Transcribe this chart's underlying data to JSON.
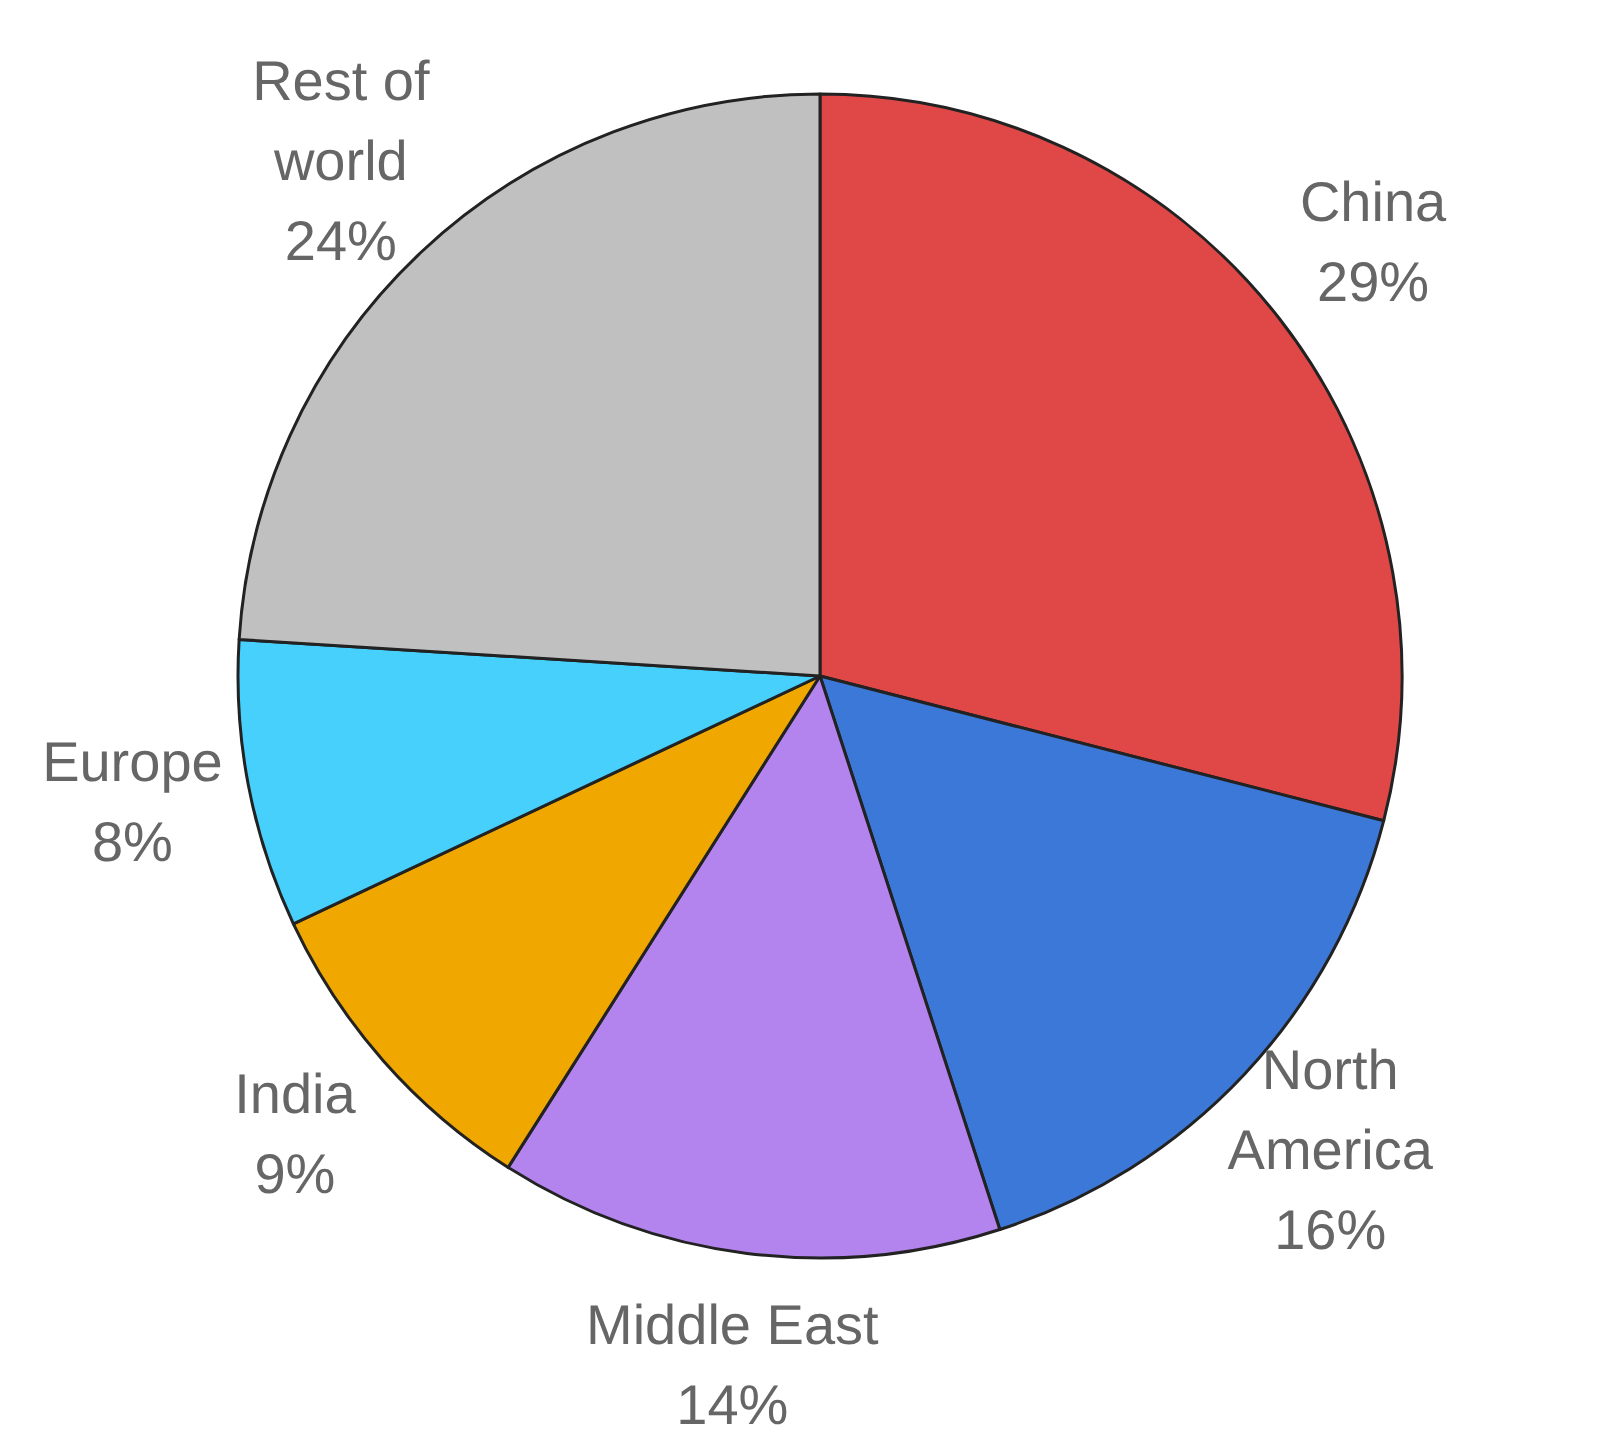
{
  "chart_data": {
    "type": "pie",
    "categories": [
      "China",
      "North America",
      "Middle East",
      "India",
      "Europe",
      "Rest of world"
    ],
    "values": [
      29,
      16,
      14,
      9,
      8,
      24
    ],
    "colors": [
      "#e04848",
      "#3c78d8",
      "#b383ee",
      "#f0a800",
      "#48d0fc",
      "#c0c0c0"
    ],
    "value_labels": [
      "29%",
      "16%",
      "14%",
      "9%",
      "8%",
      "24%"
    ]
  }
}
